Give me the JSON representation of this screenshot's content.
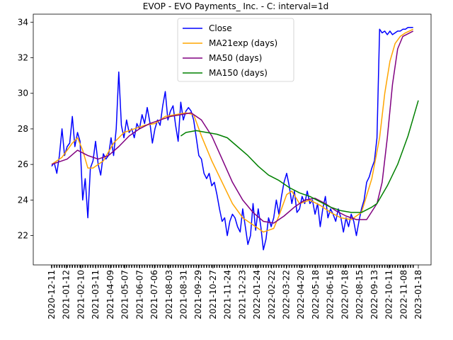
{
  "chart_data": {
    "type": "line",
    "title": "EVOP - EVO Payments_ Inc. - C: interval=1d",
    "xlabel": "",
    "ylabel": "",
    "ylim": [
      20.35,
      34.45
    ],
    "grid": false,
    "legend_position": "top-center",
    "x_ticks": [
      "2020-12-11",
      "2021-01-12",
      "2021-02-10",
      "2021-03-11",
      "2021-04-09",
      "2021-05-07",
      "2021-06-07",
      "2021-07-06",
      "2021-08-03",
      "2021-08-31",
      "2021-09-29",
      "2021-10-27",
      "2021-11-24",
      "2021-12-23",
      "2022-01-24",
      "2022-02-22",
      "2022-03-22",
      "2022-04-20",
      "2022-05-18",
      "2022-06-16",
      "2022-07-18",
      "2022-08-15",
      "2022-09-13",
      "2022-10-11",
      "2022-11-08",
      "2023-01-18"
    ],
    "y_ticks": [
      22,
      24,
      26,
      28,
      30,
      32,
      34
    ],
    "series": [
      {
        "name": "Close",
        "color": "#0000ff",
        "points": [
          [
            0,
            25.9
          ],
          [
            1,
            26.1
          ],
          [
            2,
            25.5
          ],
          [
            3,
            26.5
          ],
          [
            4,
            28.0
          ],
          [
            5,
            26.5
          ],
          [
            6,
            27.0
          ],
          [
            7,
            27.2
          ],
          [
            8,
            28.7
          ],
          [
            9,
            27.0
          ],
          [
            10,
            27.8
          ],
          [
            11,
            27.3
          ],
          [
            12,
            24.0
          ],
          [
            13,
            25.2
          ],
          [
            14,
            23.0
          ],
          [
            15,
            25.8
          ],
          [
            16,
            26.2
          ],
          [
            17,
            27.3
          ],
          [
            18,
            26.0
          ],
          [
            19,
            25.4
          ],
          [
            20,
            26.6
          ],
          [
            21,
            26.3
          ],
          [
            22,
            26.5
          ],
          [
            23,
            27.5
          ],
          [
            24,
            26.5
          ],
          [
            25,
            28.0
          ],
          [
            26,
            31.2
          ],
          [
            27,
            28.2
          ],
          [
            28,
            27.5
          ],
          [
            29,
            28.5
          ],
          [
            30,
            27.8
          ],
          [
            31,
            28.0
          ],
          [
            32,
            27.5
          ],
          [
            33,
            28.3
          ],
          [
            34,
            28.0
          ],
          [
            35,
            28.8
          ],
          [
            36,
            28.3
          ],
          [
            37,
            29.2
          ],
          [
            38,
            28.4
          ],
          [
            39,
            27.2
          ],
          [
            40,
            28.0
          ],
          [
            41,
            28.5
          ],
          [
            42,
            28.2
          ],
          [
            43,
            29.3
          ],
          [
            44,
            30.1
          ],
          [
            45,
            28.5
          ],
          [
            46,
            29.0
          ],
          [
            47,
            29.3
          ],
          [
            48,
            28.2
          ],
          [
            49,
            27.3
          ],
          [
            50,
            29.5
          ],
          [
            51,
            28.5
          ],
          [
            52,
            29.0
          ],
          [
            53,
            29.2
          ],
          [
            54,
            29.0
          ],
          [
            55,
            28.5
          ],
          [
            56,
            27.5
          ],
          [
            57,
            26.5
          ],
          [
            58,
            26.3
          ],
          [
            59,
            25.5
          ],
          [
            60,
            25.2
          ],
          [
            61,
            25.5
          ],
          [
            62,
            24.8
          ],
          [
            63,
            25.0
          ],
          [
            64,
            24.3
          ],
          [
            65,
            23.5
          ],
          [
            66,
            22.8
          ],
          [
            67,
            23.0
          ],
          [
            68,
            22.0
          ],
          [
            69,
            22.8
          ],
          [
            70,
            23.2
          ],
          [
            71,
            23.0
          ],
          [
            72,
            22.5
          ],
          [
            73,
            22.2
          ],
          [
            74,
            23.5
          ],
          [
            75,
            22.5
          ],
          [
            76,
            21.5
          ],
          [
            77,
            22.0
          ],
          [
            78,
            23.8
          ],
          [
            79,
            22.3
          ],
          [
            80,
            23.5
          ],
          [
            81,
            22.5
          ],
          [
            82,
            21.2
          ],
          [
            83,
            21.8
          ],
          [
            84,
            23.0
          ],
          [
            85,
            22.5
          ],
          [
            86,
            23.0
          ],
          [
            87,
            24.0
          ],
          [
            88,
            23.2
          ],
          [
            89,
            24.2
          ],
          [
            90,
            25.0
          ],
          [
            91,
            25.5
          ],
          [
            92,
            24.8
          ],
          [
            93,
            23.8
          ],
          [
            94,
            24.5
          ],
          [
            95,
            23.3
          ],
          [
            96,
            23.5
          ],
          [
            97,
            24.2
          ],
          [
            98,
            23.8
          ],
          [
            99,
            24.5
          ],
          [
            100,
            23.8
          ],
          [
            101,
            24.0
          ],
          [
            102,
            23.2
          ],
          [
            103,
            23.8
          ],
          [
            104,
            22.5
          ],
          [
            105,
            23.5
          ],
          [
            106,
            24.2
          ],
          [
            107,
            23.0
          ],
          [
            108,
            23.5
          ],
          [
            109,
            23.2
          ],
          [
            110,
            22.8
          ],
          [
            111,
            23.5
          ],
          [
            112,
            23.0
          ],
          [
            113,
            22.2
          ],
          [
            114,
            23.0
          ],
          [
            115,
            22.5
          ],
          [
            116,
            23.2
          ],
          [
            117,
            22.8
          ],
          [
            118,
            22.0
          ],
          [
            119,
            22.8
          ],
          [
            120,
            23.5
          ],
          [
            121,
            24.0
          ],
          [
            122,
            25.0
          ],
          [
            123,
            25.3
          ],
          [
            124,
            25.8
          ],
          [
            125,
            26.2
          ],
          [
            126,
            27.5
          ],
          [
            127,
            33.6
          ],
          [
            128,
            33.4
          ],
          [
            129,
            33.5
          ],
          [
            130,
            33.3
          ],
          [
            131,
            33.5
          ],
          [
            132,
            33.3
          ],
          [
            133,
            33.4
          ],
          [
            134,
            33.5
          ],
          [
            135,
            33.5
          ],
          [
            136,
            33.6
          ],
          [
            137,
            33.6
          ],
          [
            138,
            33.7
          ],
          [
            139,
            33.7
          ],
          [
            140,
            33.7
          ]
        ]
      },
      {
        "name": "MA21exp (days)",
        "color": "#ffa500",
        "points": [
          [
            0,
            26.0
          ],
          [
            4,
            26.4
          ],
          [
            8,
            27.2
          ],
          [
            10,
            27.5
          ],
          [
            12,
            26.8
          ],
          [
            14,
            25.8
          ],
          [
            16,
            25.8
          ],
          [
            18,
            26.0
          ],
          [
            20,
            26.2
          ],
          [
            24,
            27.2
          ],
          [
            28,
            27.8
          ],
          [
            32,
            28.0
          ],
          [
            36,
            28.2
          ],
          [
            40,
            28.3
          ],
          [
            44,
            28.7
          ],
          [
            48,
            28.8
          ],
          [
            52,
            28.9
          ],
          [
            55,
            28.8
          ],
          [
            58,
            27.6
          ],
          [
            62,
            26.2
          ],
          [
            66,
            25.0
          ],
          [
            70,
            23.8
          ],
          [
            74,
            23.0
          ],
          [
            78,
            22.6
          ],
          [
            82,
            22.2
          ],
          [
            86,
            22.4
          ],
          [
            88,
            23.1
          ],
          [
            91,
            24.3
          ],
          [
            93,
            24.5
          ],
          [
            96,
            23.8
          ],
          [
            100,
            24.0
          ],
          [
            104,
            23.7
          ],
          [
            108,
            23.3
          ],
          [
            112,
            23.0
          ],
          [
            116,
            22.9
          ],
          [
            120,
            23.3
          ],
          [
            124,
            25.2
          ],
          [
            127,
            27.5
          ],
          [
            129,
            30.0
          ],
          [
            131,
            31.8
          ],
          [
            133,
            32.8
          ],
          [
            135,
            33.2
          ],
          [
            137,
            33.4
          ],
          [
            140,
            33.6
          ]
        ]
      },
      {
        "name": "MA50 (days)",
        "color": "#800080",
        "points": [
          [
            0,
            26.0
          ],
          [
            6,
            26.3
          ],
          [
            10,
            26.8
          ],
          [
            14,
            26.5
          ],
          [
            18,
            26.3
          ],
          [
            22,
            26.5
          ],
          [
            26,
            27.0
          ],
          [
            30,
            27.6
          ],
          [
            34,
            28.0
          ],
          [
            38,
            28.3
          ],
          [
            42,
            28.5
          ],
          [
            46,
            28.7
          ],
          [
            50,
            28.8
          ],
          [
            54,
            28.9
          ],
          [
            58,
            28.5
          ],
          [
            62,
            27.6
          ],
          [
            66,
            26.3
          ],
          [
            70,
            25.0
          ],
          [
            74,
            24.0
          ],
          [
            78,
            23.3
          ],
          [
            82,
            22.8
          ],
          [
            86,
            22.7
          ],
          [
            90,
            23.1
          ],
          [
            94,
            23.6
          ],
          [
            98,
            24.0
          ],
          [
            102,
            24.1
          ],
          [
            106,
            23.8
          ],
          [
            110,
            23.4
          ],
          [
            114,
            23.1
          ],
          [
            118,
            22.9
          ],
          [
            122,
            22.9
          ],
          [
            126,
            23.8
          ],
          [
            128,
            25.0
          ],
          [
            130,
            27.5
          ],
          [
            132,
            30.5
          ],
          [
            134,
            32.5
          ],
          [
            136,
            33.2
          ],
          [
            140,
            33.5
          ]
        ]
      },
      {
        "name": "MA150 (days)",
        "color": "#008000",
        "points": [
          [
            50,
            27.6
          ],
          [
            52,
            27.8
          ],
          [
            56,
            27.9
          ],
          [
            60,
            27.8
          ],
          [
            64,
            27.7
          ],
          [
            68,
            27.5
          ],
          [
            72,
            27.0
          ],
          [
            76,
            26.5
          ],
          [
            80,
            25.9
          ],
          [
            84,
            25.4
          ],
          [
            88,
            25.1
          ],
          [
            92,
            24.7
          ],
          [
            96,
            24.4
          ],
          [
            100,
            24.2
          ],
          [
            104,
            23.9
          ],
          [
            108,
            23.6
          ],
          [
            112,
            23.4
          ],
          [
            116,
            23.3
          ],
          [
            120,
            23.3
          ],
          [
            124,
            23.6
          ],
          [
            126,
            23.8
          ],
          [
            128,
            24.3
          ],
          [
            130,
            24.8
          ],
          [
            132,
            25.4
          ],
          [
            134,
            26.0
          ],
          [
            136,
            26.8
          ],
          [
            138,
            27.6
          ],
          [
            140,
            28.6
          ],
          [
            142,
            29.6
          ]
        ]
      }
    ]
  }
}
